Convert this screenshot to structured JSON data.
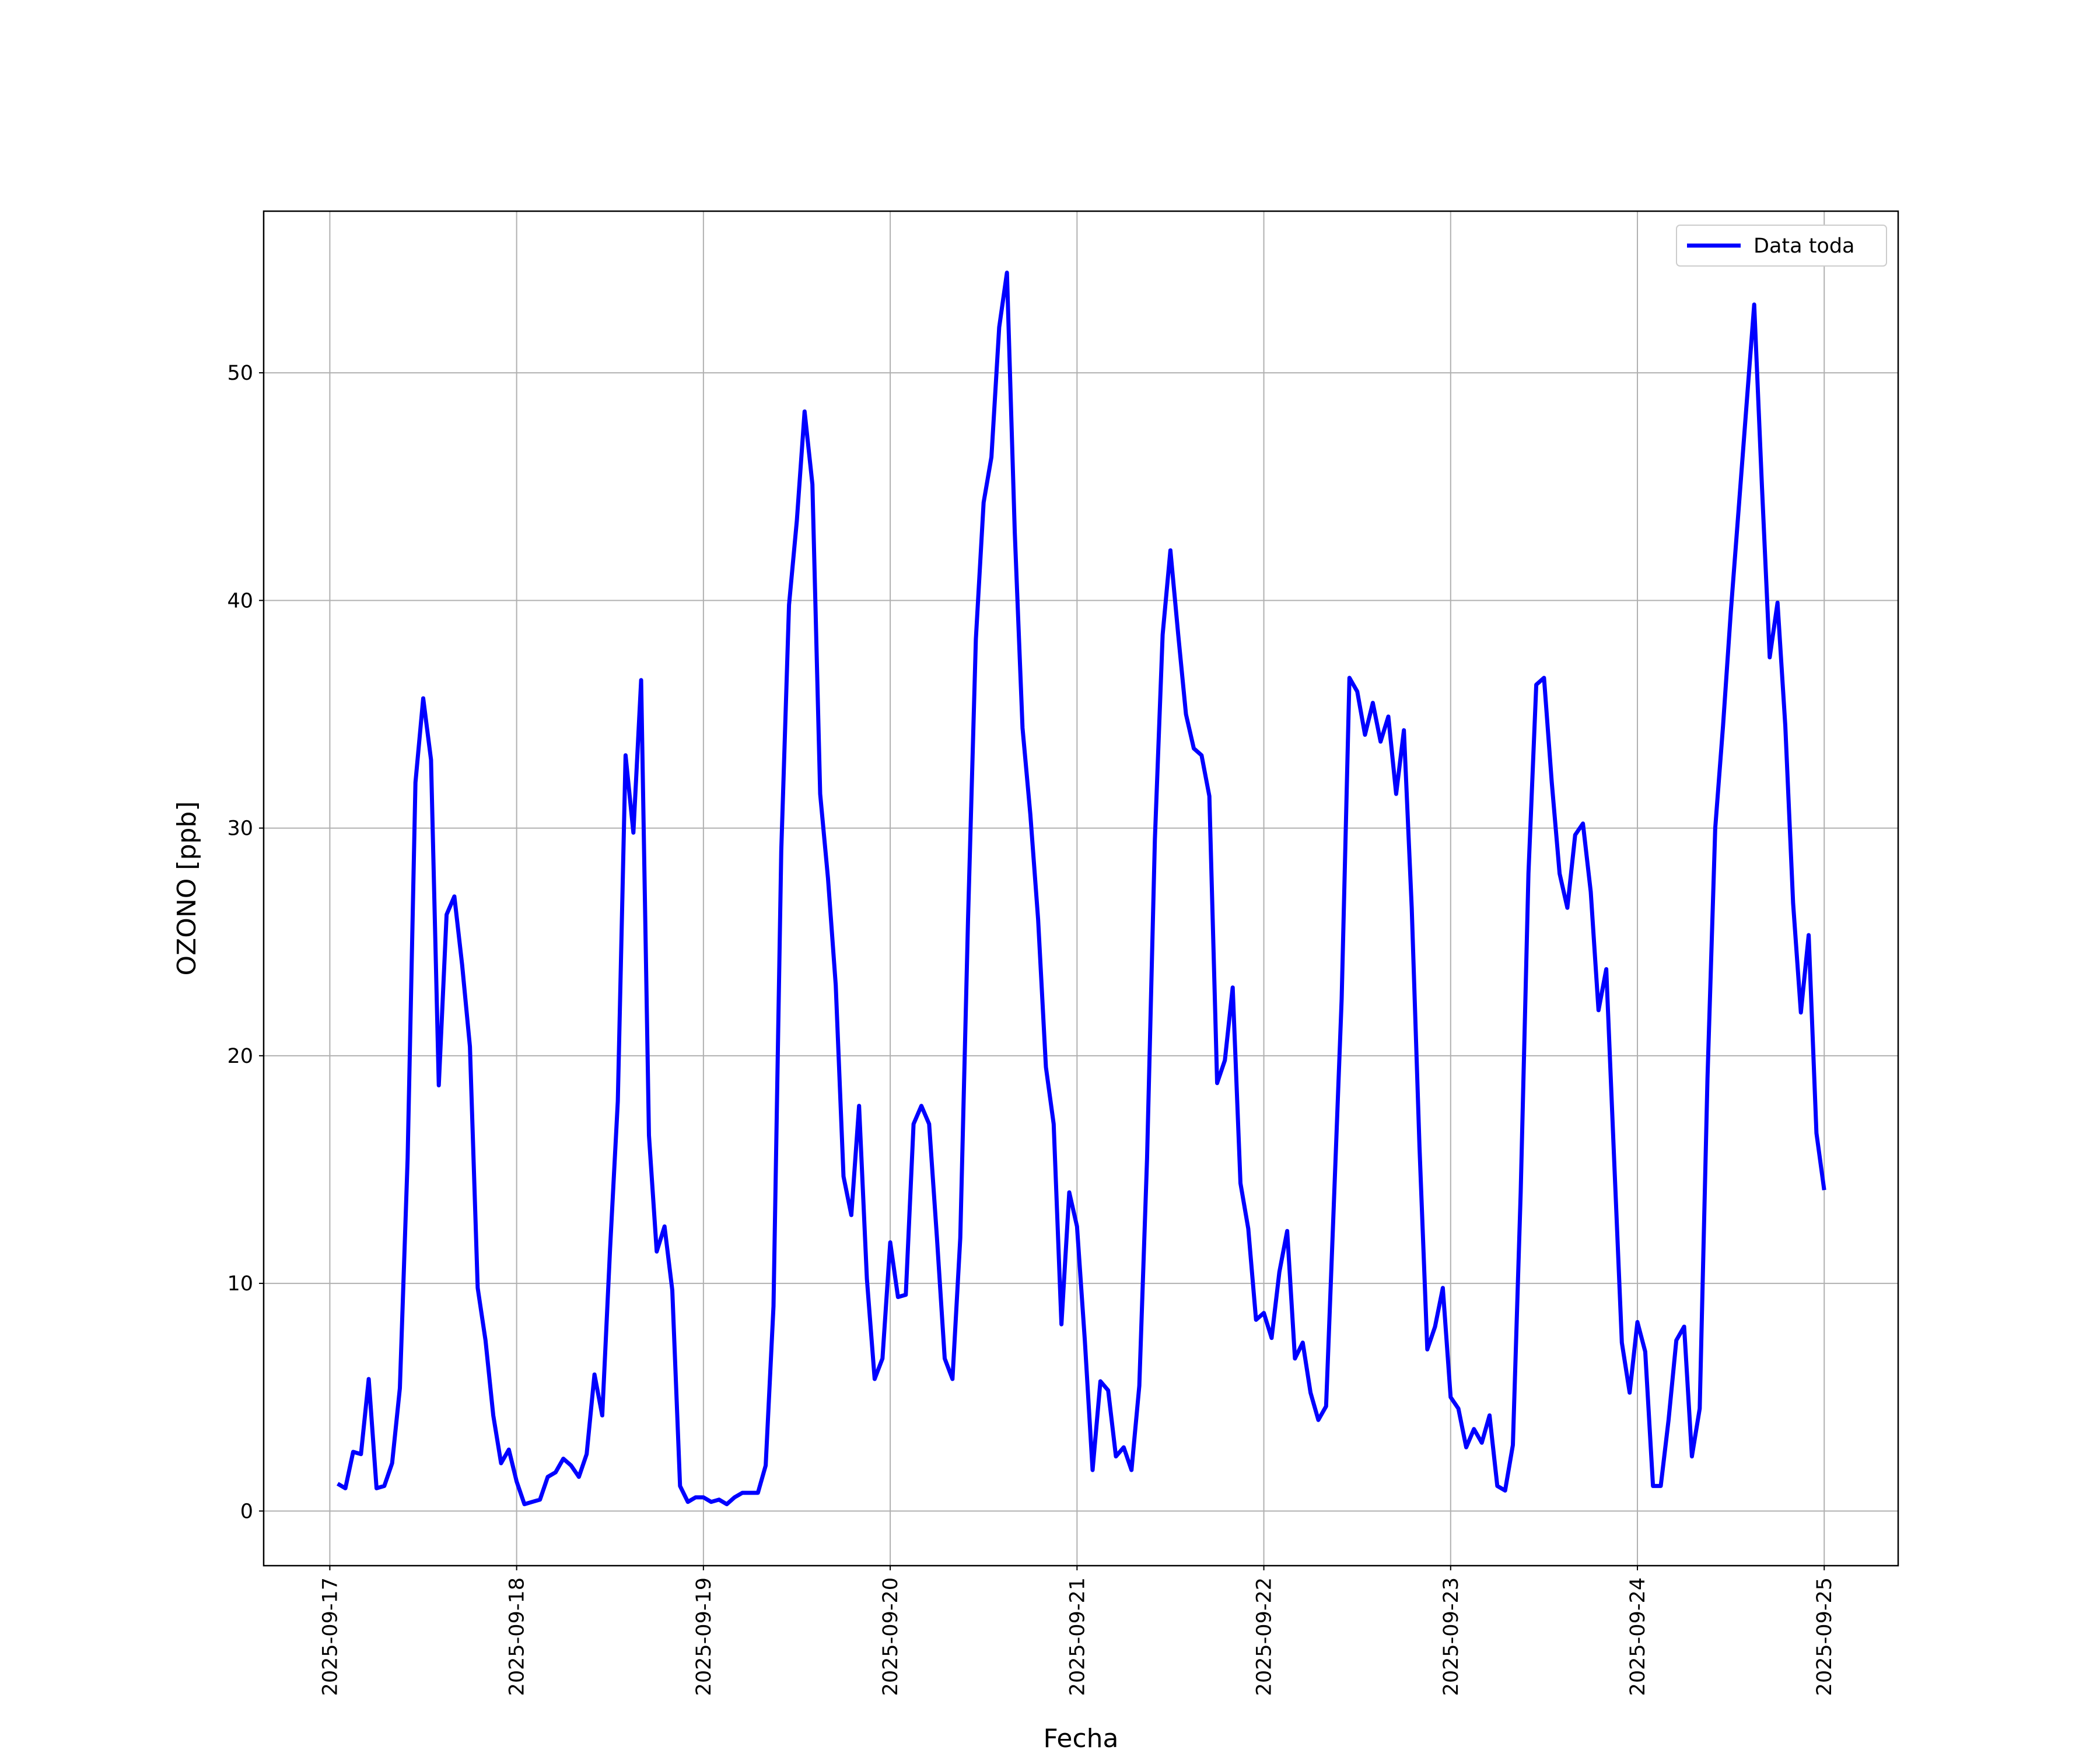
{
  "chart_data": {
    "type": "line",
    "xlabel": "Fecha",
    "ylabel": "OZONO [ppb]",
    "x": [
      "2025-09-17 01:00",
      "2025-09-17 02:00",
      "2025-09-17 03:00",
      "2025-09-17 04:00",
      "2025-09-17 05:00",
      "2025-09-17 06:00",
      "2025-09-17 07:00",
      "2025-09-17 08:00",
      "2025-09-17 09:00",
      "2025-09-17 10:00",
      "2025-09-17 11:00",
      "2025-09-17 12:00",
      "2025-09-17 13:00",
      "2025-09-17 14:00",
      "2025-09-17 15:00",
      "2025-09-17 16:00",
      "2025-09-17 17:00",
      "2025-09-17 18:00",
      "2025-09-17 19:00",
      "2025-09-17 20:00",
      "2025-09-17 21:00",
      "2025-09-17 22:00",
      "2025-09-17 23:00",
      "2025-09-18 00:00",
      "2025-09-18 01:00",
      "2025-09-18 02:00",
      "2025-09-18 03:00",
      "2025-09-18 04:00",
      "2025-09-18 05:00",
      "2025-09-18 06:00",
      "2025-09-18 07:00",
      "2025-09-18 08:00",
      "2025-09-18 09:00",
      "2025-09-18 10:00",
      "2025-09-18 11:00",
      "2025-09-18 12:00",
      "2025-09-18 13:00",
      "2025-09-18 14:00",
      "2025-09-18 15:00",
      "2025-09-18 16:00",
      "2025-09-18 17:00",
      "2025-09-18 18:00",
      "2025-09-18 19:00",
      "2025-09-18 20:00",
      "2025-09-18 21:00",
      "2025-09-18 22:00",
      "2025-09-18 23:00",
      "2025-09-19 00:00",
      "2025-09-19 01:00",
      "2025-09-19 02:00",
      "2025-09-19 03:00",
      "2025-09-19 04:00",
      "2025-09-19 05:00",
      "2025-09-19 06:00",
      "2025-09-19 07:00",
      "2025-09-19 08:00",
      "2025-09-19 09:00",
      "2025-09-19 10:00",
      "2025-09-19 11:00",
      "2025-09-19 12:00",
      "2025-09-19 13:00",
      "2025-09-19 14:00",
      "2025-09-19 15:00",
      "2025-09-19 16:00",
      "2025-09-19 17:00",
      "2025-09-19 18:00",
      "2025-09-19 19:00",
      "2025-09-19 20:00",
      "2025-09-19 21:00",
      "2025-09-19 22:00",
      "2025-09-19 23:00",
      "2025-09-20 00:00",
      "2025-09-20 01:00",
      "2025-09-20 02:00",
      "2025-09-20 03:00",
      "2025-09-20 04:00",
      "2025-09-20 05:00",
      "2025-09-20 06:00",
      "2025-09-20 07:00",
      "2025-09-20 08:00",
      "2025-09-20 09:00",
      "2025-09-20 10:00",
      "2025-09-20 11:00",
      "2025-09-20 12:00",
      "2025-09-20 13:00",
      "2025-09-20 14:00",
      "2025-09-20 15:00",
      "2025-09-20 16:00",
      "2025-09-20 17:00",
      "2025-09-20 18:00",
      "2025-09-20 19:00",
      "2025-09-20 20:00",
      "2025-09-20 21:00",
      "2025-09-20 22:00",
      "2025-09-20 23:00",
      "2025-09-21 00:00",
      "2025-09-21 01:00",
      "2025-09-21 02:00",
      "2025-09-21 03:00",
      "2025-09-21 04:00",
      "2025-09-21 05:00",
      "2025-09-21 06:00",
      "2025-09-21 07:00",
      "2025-09-21 08:00",
      "2025-09-21 09:00",
      "2025-09-21 10:00",
      "2025-09-21 11:00",
      "2025-09-21 12:00",
      "2025-09-21 13:00",
      "2025-09-21 14:00",
      "2025-09-21 15:00",
      "2025-09-21 16:00",
      "2025-09-21 17:00",
      "2025-09-21 18:00",
      "2025-09-21 19:00",
      "2025-09-21 20:00",
      "2025-09-21 21:00",
      "2025-09-21 22:00",
      "2025-09-21 23:00",
      "2025-09-22 00:00",
      "2025-09-22 01:00",
      "2025-09-22 02:00",
      "2025-09-22 03:00",
      "2025-09-22 04:00",
      "2025-09-22 05:00",
      "2025-09-22 06:00",
      "2025-09-22 07:00",
      "2025-09-22 08:00",
      "2025-09-22 09:00",
      "2025-09-22 10:00",
      "2025-09-22 11:00",
      "2025-09-22 12:00",
      "2025-09-22 13:00",
      "2025-09-22 14:00",
      "2025-09-22 15:00",
      "2025-09-22 16:00",
      "2025-09-22 17:00",
      "2025-09-22 18:00",
      "2025-09-22 19:00",
      "2025-09-22 20:00",
      "2025-09-22 21:00",
      "2025-09-22 22:00",
      "2025-09-22 23:00",
      "2025-09-23 00:00",
      "2025-09-23 01:00",
      "2025-09-23 02:00",
      "2025-09-23 03:00",
      "2025-09-23 04:00",
      "2025-09-23 05:00",
      "2025-09-23 06:00",
      "2025-09-23 07:00",
      "2025-09-23 08:00",
      "2025-09-23 09:00",
      "2025-09-23 10:00",
      "2025-09-23 11:00",
      "2025-09-23 12:00",
      "2025-09-23 13:00",
      "2025-09-23 14:00",
      "2025-09-23 15:00",
      "2025-09-23 16:00",
      "2025-09-23 17:00",
      "2025-09-23 18:00",
      "2025-09-23 19:00",
      "2025-09-23 20:00",
      "2025-09-23 21:00",
      "2025-09-23 22:00",
      "2025-09-23 23:00",
      "2025-09-24 00:00",
      "2025-09-24 01:00",
      "2025-09-24 02:00",
      "2025-09-24 03:00",
      "2025-09-24 04:00",
      "2025-09-24 05:00",
      "2025-09-24 06:00",
      "2025-09-24 07:00",
      "2025-09-24 08:00",
      "2025-09-24 09:00",
      "2025-09-24 10:00",
      "2025-09-24 11:00",
      "2025-09-24 12:00",
      "2025-09-24 13:00",
      "2025-09-24 14:00",
      "2025-09-24 15:00",
      "2025-09-24 16:00",
      "2025-09-24 17:00",
      "2025-09-24 18:00",
      "2025-09-24 19:00",
      "2025-09-24 20:00",
      "2025-09-24 21:00",
      "2025-09-24 22:00",
      "2025-09-24 23:00",
      "2025-09-25 00:00"
    ],
    "series": [
      {
        "name": "Data toda",
        "color": "#0000ff",
        "values": [
          1.2,
          1.0,
          2.6,
          2.5,
          5.8,
          1.0,
          1.1,
          2.1,
          5.4,
          15.5,
          32,
          35.7,
          33,
          18.7,
          26.2,
          27,
          24,
          20.4,
          9.8,
          7.5,
          4.2,
          2.1,
          2.7,
          1.3,
          0.3,
          0.4,
          0.5,
          1.5,
          1.7,
          2.3,
          2.0,
          1.5,
          2.5,
          6.0,
          4.2,
          11.5,
          18,
          33.2,
          29.8,
          36.5,
          16.5,
          11.4,
          12.5,
          9.7,
          1.1,
          0.4,
          0.6,
          0.6,
          0.4,
          0.5,
          0.3,
          0.6,
          0.8,
          0.8,
          0.8,
          2.0,
          9,
          29,
          39.8,
          43.5,
          48.3,
          45.1,
          31.5,
          27.8,
          23.1,
          14.7,
          13,
          17.8,
          10.2,
          5.8,
          6.7,
          11.8,
          9.4,
          9.5,
          17,
          17.8,
          17,
          12,
          6.7,
          5.8,
          12,
          26,
          38.3,
          44.3,
          46.3,
          52,
          54.4,
          43,
          34.4,
          30.6,
          26,
          19.5,
          17,
          8.2,
          14,
          12.5,
          7.5,
          1.8,
          5.7,
          5.3,
          2.4,
          2.8,
          1.8,
          5.5,
          15.5,
          29.5,
          38.5,
          42.2,
          38.5,
          35,
          33.5,
          33.2,
          31.4,
          18.8,
          19.8,
          23,
          14.4,
          12.4,
          8.4,
          8.7,
          7.6,
          10.5,
          12.3,
          6.7,
          7.4,
          5.2,
          4.0,
          4.6,
          13.5,
          22.5,
          36.6,
          36,
          34.1,
          35.5,
          33.8,
          34.9,
          31.5,
          34.3,
          26.5,
          16,
          7.1,
          8.1,
          9.8,
          5.0,
          4.5,
          2.8,
          3.6,
          3.0,
          4.2,
          1.1,
          0.9,
          2.9,
          14,
          28,
          36.3,
          36.6,
          32,
          28,
          26.5,
          29.7,
          30.2,
          27.2,
          22,
          23.8,
          15.5,
          7.4,
          5.2,
          8.3,
          7,
          1.1,
          1.1,
          4.0,
          7.5,
          8.1,
          2.4,
          4.5,
          19,
          30,
          34.5,
          39.5,
          44,
          48.5,
          53,
          45,
          37.5,
          39.9,
          34.5,
          26.7,
          21.9,
          25.3,
          16.6,
          14.1
        ]
      }
    ],
    "xlim": [
      "2025-09-16 15:30",
      "2025-09-25 09:30"
    ],
    "xticks": [
      "2025-09-17",
      "2025-09-18",
      "2025-09-19",
      "2025-09-20",
      "2025-09-21",
      "2025-09-22",
      "2025-09-23",
      "2025-09-24",
      "2025-09-25"
    ],
    "ylim": [
      -2.4,
      57.1
    ],
    "yticks": [
      0,
      10,
      20,
      30,
      40,
      50
    ],
    "grid": true,
    "legend": "upper right"
  }
}
